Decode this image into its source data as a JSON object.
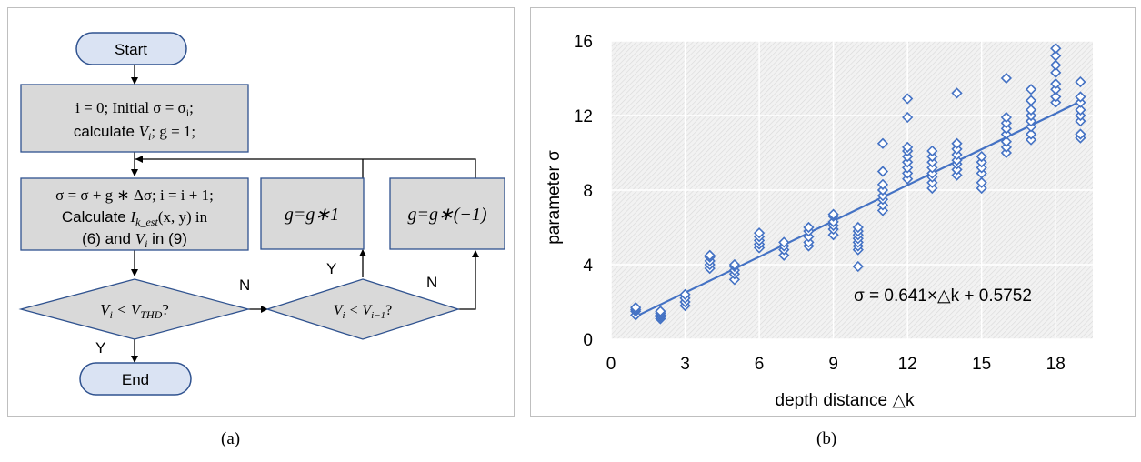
{
  "flowchart": {
    "start": "Start",
    "end": "End",
    "init_line1": "i = 0; Initial σ = σ",
    "init_line1_sub": "i",
    "init_line1_tail": ";",
    "init_line2_pre": "calculate ",
    "init_line2_V": "V",
    "init_line2_sub": "i",
    "init_line2_tail": "; g = 1;",
    "update_line1": "σ = σ + g ∗ Δσ; i = i + 1;",
    "update_line2_pre": "Calculate ",
    "update_line2_I": "I",
    "update_line2_sub": "k_est",
    "update_line2_tail": "(x, y) in",
    "update_line3_pre": "(6) and ",
    "update_line3_V": "V",
    "update_line3_sub": "i",
    "update_line3_tail": " in (9)",
    "decision1_V": "V",
    "decision1_sub": "i",
    "decision1_mid": " < V",
    "decision1_sub2": "THD",
    "decision1_tail": "?",
    "decision2_V": "V",
    "decision2_sub": "i",
    "decision2_mid": " < V",
    "decision2_sub2": "i−1",
    "decision2_tail": "?",
    "g_keep": "g=g∗1",
    "g_flip": "g=g∗(−1)",
    "label_N1": "N",
    "label_Y1": "Y",
    "label_Y2": "Y",
    "label_N2": "N"
  },
  "captions": {
    "a": "(a)",
    "b": "(b)"
  },
  "colors": {
    "box_fill": "#d9d9d9",
    "box_stroke": "#2f528f",
    "terminal_fill": "#dae3f3",
    "series": "#4472c4"
  },
  "chart_data": {
    "type": "scatter",
    "xlabel": "depth distance △k",
    "ylabel": "parameter σ",
    "xlim": [
      0,
      19.5
    ],
    "ylim": [
      0,
      16
    ],
    "xticks": [
      0,
      3,
      6,
      9,
      12,
      15,
      18
    ],
    "yticks": [
      0,
      4,
      8,
      12,
      16
    ],
    "grid": true,
    "trendline": {
      "slope": 0.641,
      "intercept": 0.5752,
      "x_range": [
        1,
        19
      ],
      "label": "σ = 0.641×△k + 0.5752"
    },
    "marker": "diamond",
    "points": [
      [
        1,
        1.3
      ],
      [
        1,
        1.5
      ],
      [
        1,
        1.6
      ],
      [
        1,
        1.7
      ],
      [
        2,
        1.1
      ],
      [
        2,
        1.2
      ],
      [
        2,
        1.3
      ],
      [
        2,
        1.4
      ],
      [
        2,
        1.5
      ],
      [
        3,
        1.8
      ],
      [
        3,
        2.0
      ],
      [
        3,
        2.2
      ],
      [
        3,
        2.4
      ],
      [
        4,
        3.8
      ],
      [
        4,
        4.0
      ],
      [
        4,
        4.2
      ],
      [
        4,
        4.4
      ],
      [
        4,
        4.5
      ],
      [
        5,
        3.2
      ],
      [
        5,
        3.5
      ],
      [
        5,
        3.7
      ],
      [
        5,
        3.9
      ],
      [
        5,
        4.0
      ],
      [
        6,
        4.9
      ],
      [
        6,
        5.1
      ],
      [
        6,
        5.3
      ],
      [
        6,
        5.5
      ],
      [
        6,
        5.7
      ],
      [
        7,
        4.5
      ],
      [
        7,
        4.8
      ],
      [
        7,
        5.0
      ],
      [
        7,
        5.2
      ],
      [
        8,
        5.0
      ],
      [
        8,
        5.2
      ],
      [
        8,
        5.5
      ],
      [
        8,
        5.8
      ],
      [
        8,
        6.0
      ],
      [
        9,
        5.6
      ],
      [
        9,
        5.9
      ],
      [
        9,
        6.1
      ],
      [
        9,
        6.3
      ],
      [
        9,
        6.6
      ],
      [
        9,
        6.7
      ],
      [
        10,
        3.9
      ],
      [
        10,
        4.8
      ],
      [
        10,
        5.0
      ],
      [
        10,
        5.2
      ],
      [
        10,
        5.4
      ],
      [
        10,
        5.6
      ],
      [
        10,
        5.8
      ],
      [
        10,
        6.0
      ],
      [
        11,
        6.9
      ],
      [
        11,
        7.2
      ],
      [
        11,
        7.5
      ],
      [
        11,
        7.7
      ],
      [
        11,
        8.0
      ],
      [
        11,
        8.3
      ],
      [
        11,
        9.0
      ],
      [
        11,
        10.5
      ],
      [
        12,
        8.6
      ],
      [
        12,
        8.9
      ],
      [
        12,
        9.2
      ],
      [
        12,
        9.5
      ],
      [
        12,
        9.8
      ],
      [
        12,
        10.1
      ],
      [
        12,
        10.3
      ],
      [
        12,
        11.9
      ],
      [
        12,
        12.9
      ],
      [
        13,
        8.1
      ],
      [
        13,
        8.4
      ],
      [
        13,
        8.7
      ],
      [
        13,
        8.9
      ],
      [
        13,
        9.2
      ],
      [
        13,
        9.5
      ],
      [
        13,
        9.8
      ],
      [
        13,
        10.1
      ],
      [
        14,
        8.8
      ],
      [
        14,
        9.1
      ],
      [
        14,
        9.4
      ],
      [
        14,
        9.6
      ],
      [
        14,
        9.9
      ],
      [
        14,
        10.2
      ],
      [
        14,
        10.5
      ],
      [
        14,
        13.2
      ],
      [
        15,
        8.1
      ],
      [
        15,
        8.4
      ],
      [
        15,
        8.9
      ],
      [
        15,
        9.2
      ],
      [
        15,
        9.5
      ],
      [
        15,
        9.8
      ],
      [
        16,
        10.0
      ],
      [
        16,
        10.3
      ],
      [
        16,
        10.6
      ],
      [
        16,
        11.0
      ],
      [
        16,
        11.3
      ],
      [
        16,
        11.6
      ],
      [
        16,
        11.9
      ],
      [
        16,
        14.0
      ],
      [
        17,
        10.7
      ],
      [
        17,
        11.0
      ],
      [
        17,
        11.4
      ],
      [
        17,
        11.7
      ],
      [
        17,
        12.0
      ],
      [
        17,
        12.3
      ],
      [
        17,
        12.8
      ],
      [
        17,
        13.4
      ],
      [
        18,
        12.7
      ],
      [
        18,
        13.0
      ],
      [
        18,
        13.4
      ],
      [
        18,
        13.7
      ],
      [
        18,
        14.3
      ],
      [
        18,
        14.7
      ],
      [
        18,
        15.2
      ],
      [
        18,
        15.6
      ],
      [
        19,
        10.8
      ],
      [
        19,
        11.0
      ],
      [
        19,
        11.7
      ],
      [
        19,
        12.0
      ],
      [
        19,
        12.3
      ],
      [
        19,
        12.7
      ],
      [
        19,
        13.0
      ],
      [
        19,
        13.8
      ]
    ]
  }
}
